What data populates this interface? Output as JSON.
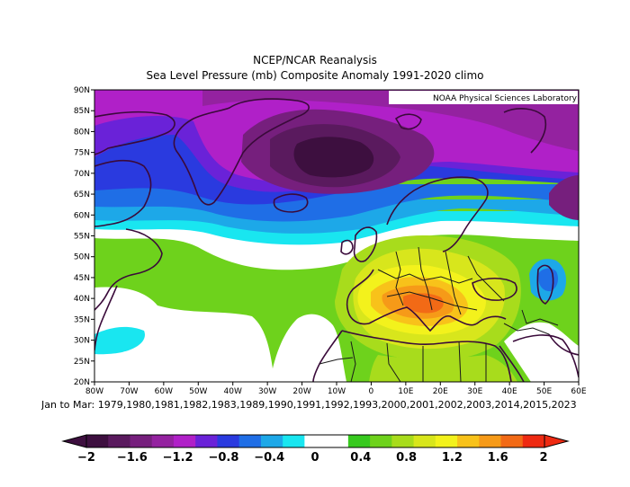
{
  "header": {
    "title": "NCEP/NCAR Reanalysis",
    "subtitle": "Sea Level Pressure (mb) Composite Anomaly 1991-2020 climo"
  },
  "map": {
    "credit": "NOAA Physical Sciences Laboratory",
    "lat_labels": [
      "90N",
      "85N",
      "80N",
      "75N",
      "70N",
      "65N",
      "60N",
      "55N",
      "50N",
      "45N",
      "40N",
      "35N",
      "30N",
      "25N",
      "20N"
    ],
    "lon_labels": [
      "80W",
      "70W",
      "60W",
      "50W",
      "40W",
      "30W",
      "20W",
      "10W",
      "0",
      "10E",
      "20E",
      "30E",
      "40E",
      "50E",
      "60E"
    ],
    "colors": {
      "c_m2": "#3d0f3f",
      "c_m18": "#5a1a5e",
      "c_m16": "#761f7d",
      "c_m14": "#9422a0",
      "c_m12": "#b020c8",
      "c_m1": "#6a22d8",
      "c_m08": "#2a3adf",
      "c_m06": "#1f6ee6",
      "c_m04": "#1da8e8",
      "c_m02": "#19e6f0",
      "c_0": "#ffffff",
      "c_02": "#37c91e",
      "c_04": "#6ed21c",
      "c_06": "#a8dc1c",
      "c_08": "#d8e61c",
      "c_1": "#f3f21c",
      "c_12": "#f8c21a",
      "c_14": "#f69a18",
      "c_16": "#f26a16",
      "c_18": "#ee2a12",
      "coast": "#3a0a3a",
      "border": "#1a1a1a"
    }
  },
  "caption": "Jan to Mar: 1979,1980,1981,1982,1983,1989,1990,1991,1992,1993,2000,2001,2002,2003,2014,2015,2023",
  "colorbar": {
    "labels": [
      "-2",
      "-1.6",
      "-1.2",
      "-0.8",
      "-0.4",
      "0",
      "0.4",
      "0.8",
      "1.2",
      "1.6",
      "2"
    ],
    "colors": [
      "#3d0f3f",
      "#5a1a5e",
      "#761f7d",
      "#9422a0",
      "#b020c8",
      "#6a22d8",
      "#2a3adf",
      "#1f6ee6",
      "#1da8e8",
      "#19e6f0",
      "#ffffff",
      "#ffffff",
      "#37c91e",
      "#6ed21c",
      "#a8dc1c",
      "#d8e61c",
      "#f3f21c",
      "#f8c21a",
      "#f69a18",
      "#f26a16",
      "#ee2a12"
    ]
  }
}
